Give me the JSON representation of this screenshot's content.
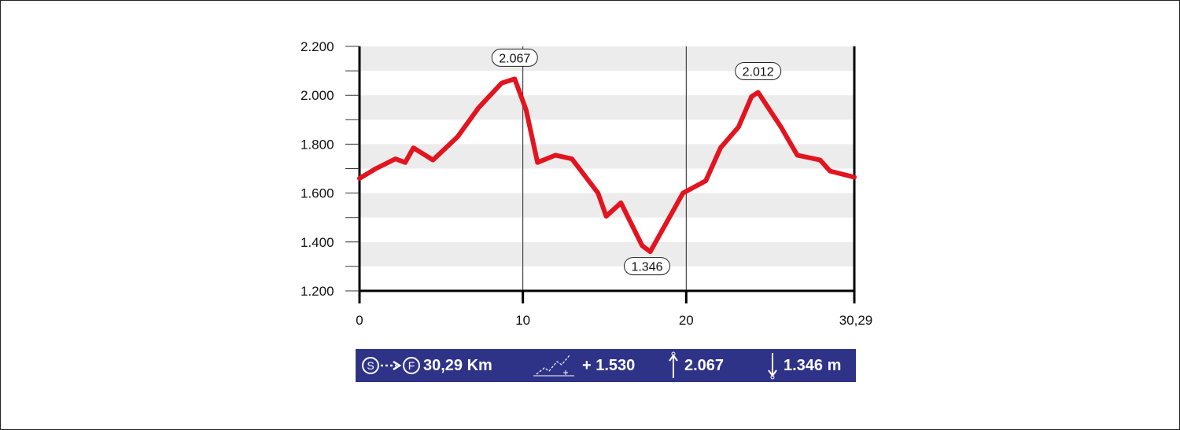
{
  "chart_data": {
    "type": "line",
    "title": "",
    "xlabel": "",
    "ylabel": "",
    "xlim": [
      0,
      30.29
    ],
    "ylim": [
      1200,
      2200
    ],
    "x_ticks": [
      "0",
      "10",
      "20",
      "30,29"
    ],
    "y_ticks": [
      "1.200",
      "1.400",
      "1.600",
      "1.800",
      "2.000",
      "2.200"
    ],
    "grid": "alternating horizontal bands",
    "vertical_markers": [
      10,
      20
    ],
    "series": [
      {
        "color": "#e2141f",
        "x": [
          0,
          1,
          2.2,
          2.8,
          3.3,
          4.5,
          6,
          7.3,
          8.7,
          9.5,
          10.2,
          10.9,
          12,
          13,
          14.6,
          15.1,
          16,
          17.3,
          17.8,
          19.8,
          21.2,
          22.1,
          23.2,
          24,
          24.4,
          25.8,
          26.8,
          28.2,
          28.8,
          30.29
        ],
        "y": [
          1660,
          1700,
          1740,
          1725,
          1785,
          1735,
          1830,
          1950,
          2050,
          2067,
          1940,
          1725,
          1755,
          1740,
          1600,
          1505,
          1560,
          1385,
          1360,
          1600,
          1650,
          1785,
          1870,
          1995,
          2012,
          1870,
          1755,
          1735,
          1690,
          1665
        ]
      }
    ],
    "annotations": [
      {
        "label": "2.067",
        "x": 9.5,
        "y": 2067
      },
      {
        "label": "1.346",
        "x": 17.6,
        "y": 1346
      },
      {
        "label": "2.012",
        "x": 24.4,
        "y": 2012
      }
    ]
  },
  "stats": {
    "start_icon": "S",
    "finish_icon": "F",
    "distance": "30,29 Km",
    "ascent": "+ 1.530",
    "max_elevation": "2.067",
    "min_elevation": "1.346 m",
    "icons": [
      "start-finish-icon",
      "ascent-icon",
      "up-arrow-icon",
      "down-arrow-icon"
    ],
    "background_color": "#2e3388"
  }
}
